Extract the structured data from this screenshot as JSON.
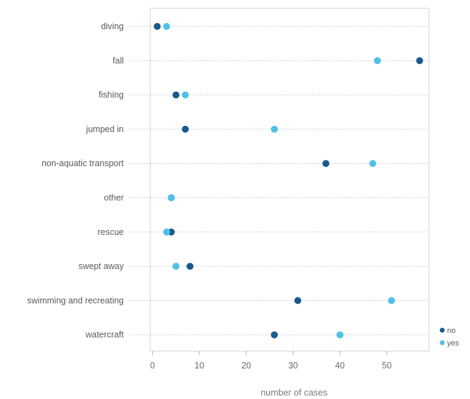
{
  "chart_data": {
    "type": "scatter",
    "categories": [
      "diving",
      "fall",
      "fishing",
      "jumped in",
      "non-aquatic transport",
      "other",
      "rescue",
      "swept away",
      "swimming and recreating",
      "watercraft"
    ],
    "series": [
      {
        "name": "no",
        "color": "#1a5a8c",
        "values": [
          1,
          57,
          5,
          7,
          37,
          4,
          4,
          8,
          31,
          26
        ]
      },
      {
        "name": "yes",
        "color": "#4fc1e9",
        "values": [
          3,
          48,
          7,
          26,
          47,
          4,
          3,
          5,
          51,
          40
        ]
      }
    ],
    "xlabel": "number of cases",
    "ylabel": "",
    "xlim": [
      -0.5,
      59
    ],
    "xticks": [
      0,
      10,
      20,
      30,
      40,
      50
    ],
    "grid": "dotted horizontal",
    "legend": "bottom-right"
  }
}
